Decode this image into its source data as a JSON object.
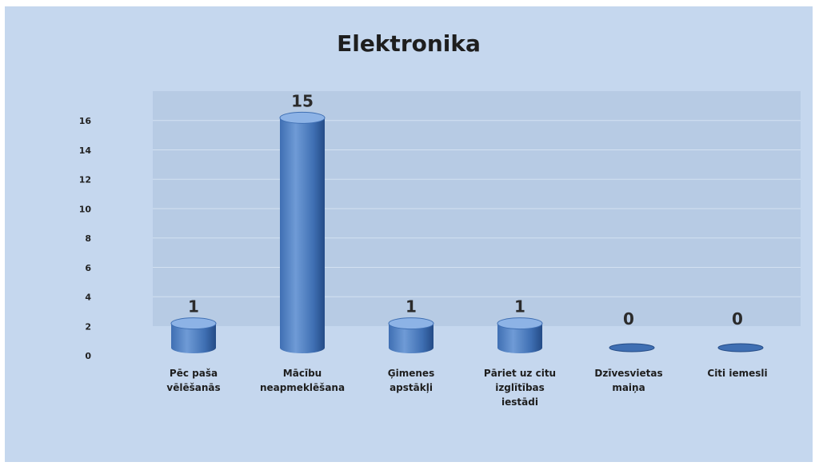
{
  "chart_data": {
    "type": "bar",
    "title": "Elektronika",
    "categories": [
      [
        "Pēc paša",
        "vēlēšanās"
      ],
      [
        "Mācību",
        "neapmeklēšana"
      ],
      [
        "Ģimenes",
        "apstākļi"
      ],
      [
        "Pāriet uz citu",
        "izglītības",
        "iestādi"
      ],
      [
        "Dzīvesvietas",
        "maiņa"
      ],
      [
        "Citi iemesli"
      ]
    ],
    "values": [
      1,
      15,
      1,
      1,
      0,
      0
    ],
    "data_labels": [
      "1",
      "15",
      "1",
      "1",
      "0",
      "0"
    ],
    "yticks": [
      "0",
      "2",
      "4",
      "6",
      "8",
      "10",
      "12",
      "14",
      "16"
    ],
    "ylim": [
      0,
      16
    ],
    "xlabel": "",
    "ylabel": "",
    "grid": true,
    "style": "3d-cylinder",
    "colors": {
      "background": "#c5d7ee",
      "plot_wall": "#b7cbe4",
      "bar_light": "#6f9bd6",
      "bar_mid": "#3f6fb3",
      "bar_dark": "#244b86",
      "bar_top": "#8db3e6"
    }
  }
}
